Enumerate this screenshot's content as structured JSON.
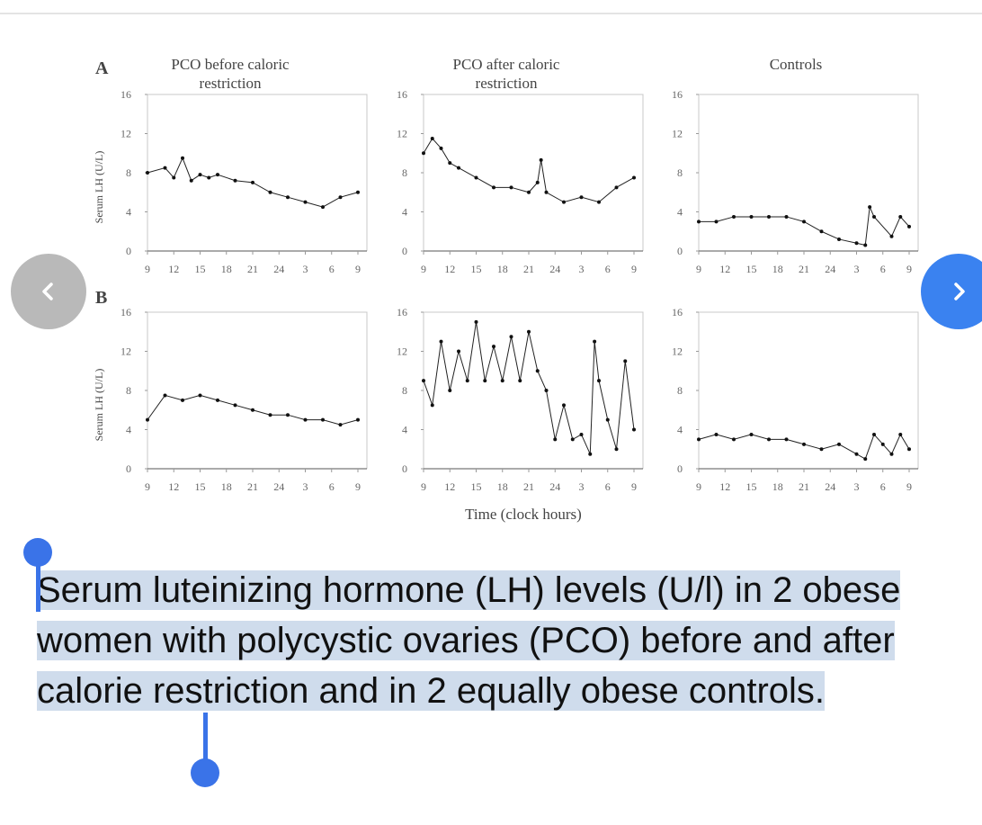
{
  "navigation": {
    "prev_icon": "chevron-left-icon",
    "next_icon": "chevron-right-icon"
  },
  "caption": "Serum luteinizing hormone (LH) levels (U/l) in 2 obese women with polycystic ovaries (PCO) before and after calorie restriction and in 2 equally obese controls.",
  "colors": {
    "selection_highlight": "#cfdcec",
    "selection_handle": "#3a73e8",
    "next_button": "#3a82f0",
    "prev_button": "#b9b9b9"
  },
  "chart_data": {
    "type": "line",
    "xlabel": "Time (clock hours)",
    "rows": [
      {
        "label": "A",
        "ylabel": "Serum LH (U/L)"
      },
      {
        "label": "B",
        "ylabel": "Serum LH (U/L)"
      }
    ],
    "columns": [
      "PCO before caloric restriction",
      "PCO after caloric restriction",
      "Controls"
    ],
    "column_titles": [
      [
        "PCO before caloric",
        "restriction"
      ],
      [
        "PCO after caloric",
        "restriction"
      ],
      [
        "Controls"
      ]
    ],
    "x_ticks": [
      "9",
      "12",
      "15",
      "18",
      "21",
      "24",
      "3",
      "6",
      "9"
    ],
    "y_ticks": [
      0,
      4,
      8,
      12,
      16
    ],
    "ylim": [
      0,
      16
    ],
    "x_range_hours": [
      0,
      24
    ],
    "grid": false,
    "panels": [
      {
        "row": "A",
        "column": "PCO before caloric restriction",
        "x": [
          0,
          2,
          3,
          4,
          5,
          6,
          7,
          8,
          10,
          12,
          14,
          16,
          18,
          20,
          22,
          24
        ],
        "y": [
          8,
          8.5,
          7.5,
          9.5,
          7.2,
          7.8,
          7.5,
          7.8,
          7.2,
          7,
          6,
          5.5,
          5,
          4.5,
          5.5,
          6
        ]
      },
      {
        "row": "A",
        "column": "PCO after caloric restriction",
        "x": [
          0,
          1,
          2,
          3,
          4,
          6,
          8,
          10,
          12,
          13,
          13.4,
          14,
          16,
          18,
          20,
          22,
          24
        ],
        "y": [
          10,
          11.5,
          10.5,
          9,
          8.5,
          7.5,
          6.5,
          6.5,
          6,
          7,
          9.3,
          6,
          5,
          5.5,
          5,
          6.5,
          7.5
        ]
      },
      {
        "row": "A",
        "column": "Controls",
        "x": [
          0,
          2,
          4,
          6,
          8,
          10,
          12,
          14,
          16,
          18,
          19,
          19.5,
          20,
          22,
          23,
          24
        ],
        "y": [
          3,
          3,
          3.5,
          3.5,
          3.5,
          3.5,
          3,
          2,
          1.2,
          0.8,
          0.6,
          4.5,
          3.5,
          1.5,
          3.5,
          2.5
        ]
      },
      {
        "row": "B",
        "column": "PCO before caloric restriction",
        "x": [
          0,
          2,
          4,
          6,
          8,
          10,
          12,
          14,
          16,
          18,
          20,
          22,
          24
        ],
        "y": [
          5,
          7.5,
          7,
          7.5,
          7,
          6.5,
          6,
          5.5,
          5.5,
          5,
          5,
          4.5,
          5
        ]
      },
      {
        "row": "B",
        "column": "PCO after caloric restriction",
        "x": [
          0,
          1,
          2,
          3,
          4,
          5,
          6,
          7,
          8,
          9,
          10,
          11,
          12,
          13,
          14,
          15,
          16,
          17,
          18,
          19,
          19.5,
          20,
          21,
          22,
          23,
          24
        ],
        "y": [
          9,
          6.5,
          13,
          8,
          12,
          9,
          15,
          9,
          12.5,
          9,
          13.5,
          9,
          14,
          10,
          8,
          3,
          6.5,
          3,
          3.5,
          1.5,
          13,
          9,
          5,
          2,
          11,
          4
        ]
      },
      {
        "row": "B",
        "column": "Controls",
        "x": [
          0,
          2,
          4,
          6,
          8,
          10,
          12,
          14,
          16,
          18,
          19,
          20,
          21,
          22,
          23,
          24
        ],
        "y": [
          3,
          3.5,
          3,
          3.5,
          3,
          3,
          2.5,
          2,
          2.5,
          1.5,
          1,
          3.5,
          2.5,
          1.5,
          3.5,
          2
        ]
      }
    ]
  }
}
